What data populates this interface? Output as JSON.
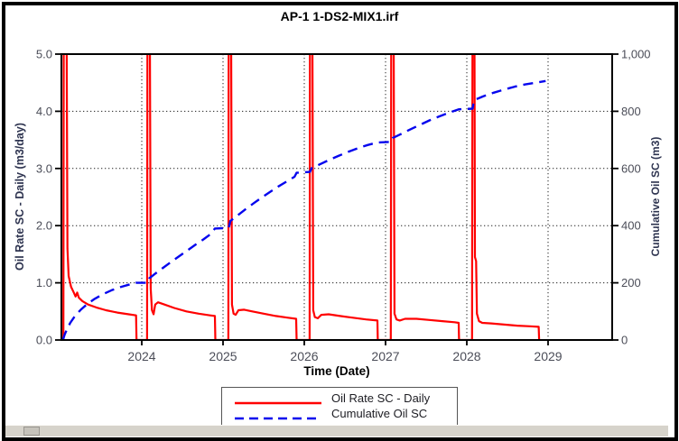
{
  "chart_data": {
    "type": "line",
    "title": "AP-1 1-DS2-MIX1.irf",
    "grid": "dotted",
    "legend_position": "bottom-center",
    "x_axis": {
      "label": "Time (Date)",
      "range": [
        2023.011,
        2029.789
      ],
      "ticks": [
        {
          "v": 2024,
          "label": "2024"
        },
        {
          "v": 2025,
          "label": "2025"
        },
        {
          "v": 2026,
          "label": "2026"
        },
        {
          "v": 2027,
          "label": "2027"
        },
        {
          "v": 2028,
          "label": "2028"
        },
        {
          "v": 2029,
          "label": "2029"
        }
      ]
    },
    "y_left": {
      "label": "Oil Rate SC - Daily (m3/day)",
      "range": [
        0,
        5
      ],
      "ticks": [
        {
          "v": 0,
          "label": "0.0"
        },
        {
          "v": 1,
          "label": "1.0"
        },
        {
          "v": 2,
          "label": "2.0"
        },
        {
          "v": 3,
          "label": "3.0"
        },
        {
          "v": 4,
          "label": "4.0"
        },
        {
          "v": 5,
          "label": "5.0"
        }
      ]
    },
    "y_right": {
      "label": "Cumulative Oil SC (m3)",
      "range": [
        0,
        1000
      ],
      "ticks": [
        {
          "v": 0,
          "label": "0"
        },
        {
          "v": 200,
          "label": "200"
        },
        {
          "v": 400,
          "label": "400"
        },
        {
          "v": 600,
          "label": "600"
        },
        {
          "v": 800,
          "label": "800"
        },
        {
          "v": 1000,
          "label": "1,000"
        }
      ]
    },
    "series": [
      {
        "name": "Oil Rate SC - Daily",
        "color": "#ff0000",
        "style": "solid",
        "axis": "left",
        "width": 2.2,
        "points": [
          [
            2023.035,
            0
          ],
          [
            2023.04,
            5.3
          ],
          [
            2023.075,
            5.3
          ],
          [
            2023.085,
            1.6
          ],
          [
            2023.1,
            1.12
          ],
          [
            2023.13,
            0.93
          ],
          [
            2023.16,
            0.84
          ],
          [
            2023.185,
            0.76
          ],
          [
            2023.205,
            0.83
          ],
          [
            2023.225,
            0.74
          ],
          [
            2023.27,
            0.68
          ],
          [
            2023.34,
            0.62
          ],
          [
            2023.44,
            0.57
          ],
          [
            2023.56,
            0.52
          ],
          [
            2023.7,
            0.48
          ],
          [
            2023.84,
            0.45
          ],
          [
            2023.93,
            0.43
          ],
          [
            2023.935,
            0
          ],
          [
            2024.065,
            0
          ],
          [
            2024.07,
            5.3
          ],
          [
            2024.1,
            5.3
          ],
          [
            2024.11,
            0.9
          ],
          [
            2024.125,
            0.52
          ],
          [
            2024.145,
            0.45
          ],
          [
            2024.165,
            0.62
          ],
          [
            2024.2,
            0.66
          ],
          [
            2024.28,
            0.62
          ],
          [
            2024.4,
            0.56
          ],
          [
            2024.55,
            0.5
          ],
          [
            2024.7,
            0.46
          ],
          [
            2024.84,
            0.43
          ],
          [
            2024.9,
            0.42
          ],
          [
            2024.905,
            0
          ],
          [
            2025.065,
            0
          ],
          [
            2025.07,
            5.3
          ],
          [
            2025.1,
            5.3
          ],
          [
            2025.11,
            0.62
          ],
          [
            2025.13,
            0.46
          ],
          [
            2025.155,
            0.44
          ],
          [
            2025.19,
            0.52
          ],
          [
            2025.26,
            0.53
          ],
          [
            2025.36,
            0.5
          ],
          [
            2025.5,
            0.46
          ],
          [
            2025.65,
            0.42
          ],
          [
            2025.8,
            0.39
          ],
          [
            2025.9,
            0.37
          ],
          [
            2025.905,
            0
          ],
          [
            2026.065,
            0
          ],
          [
            2026.07,
            5.3
          ],
          [
            2026.1,
            5.3
          ],
          [
            2026.11,
            0.52
          ],
          [
            2026.13,
            0.4
          ],
          [
            2026.165,
            0.38
          ],
          [
            2026.21,
            0.44
          ],
          [
            2026.3,
            0.45
          ],
          [
            2026.44,
            0.42
          ],
          [
            2026.6,
            0.39
          ],
          [
            2026.76,
            0.36
          ],
          [
            2026.9,
            0.34
          ],
          [
            2026.905,
            0
          ],
          [
            2027.065,
            0
          ],
          [
            2027.07,
            5.3
          ],
          [
            2027.1,
            5.3
          ],
          [
            2027.11,
            0.46
          ],
          [
            2027.135,
            0.36
          ],
          [
            2027.175,
            0.34
          ],
          [
            2027.24,
            0.37
          ],
          [
            2027.38,
            0.37
          ],
          [
            2027.54,
            0.35
          ],
          [
            2027.7,
            0.33
          ],
          [
            2027.85,
            0.31
          ],
          [
            2027.9,
            0.3
          ],
          [
            2027.905,
            0
          ],
          [
            2028.065,
            0
          ],
          [
            2028.07,
            5.3
          ],
          [
            2028.095,
            5.3
          ],
          [
            2028.1,
            1.45
          ],
          [
            2028.115,
            1.38
          ],
          [
            2028.125,
            0.46
          ],
          [
            2028.15,
            0.33
          ],
          [
            2028.19,
            0.3
          ],
          [
            2028.3,
            0.29
          ],
          [
            2028.46,
            0.27
          ],
          [
            2028.62,
            0.25
          ],
          [
            2028.78,
            0.24
          ],
          [
            2028.885,
            0.23
          ],
          [
            2028.89,
            0
          ]
        ]
      },
      {
        "name": "Cumulative Oil SC",
        "color": "#0606ee",
        "style": "dashed",
        "axis": "right",
        "width": 2.4,
        "points": [
          [
            2023.03,
            0
          ],
          [
            2023.05,
            18
          ],
          [
            2023.08,
            38
          ],
          [
            2023.12,
            60
          ],
          [
            2023.18,
            85
          ],
          [
            2023.25,
            106
          ],
          [
            2023.33,
            126
          ],
          [
            2023.42,
            144
          ],
          [
            2023.52,
            160
          ],
          [
            2023.63,
            174
          ],
          [
            2023.75,
            186
          ],
          [
            2023.86,
            195
          ],
          [
            2023.93,
            200
          ],
          [
            2024.07,
            200
          ],
          [
            2024.09,
            215
          ],
          [
            2024.16,
            231
          ],
          [
            2024.26,
            252
          ],
          [
            2024.36,
            273
          ],
          [
            2024.46,
            293
          ],
          [
            2024.56,
            313
          ],
          [
            2024.66,
            333
          ],
          [
            2024.76,
            352
          ],
          [
            2024.85,
            371
          ],
          [
            2024.9,
            390
          ],
          [
            2025.07,
            392
          ],
          [
            2025.09,
            416
          ],
          [
            2025.18,
            436
          ],
          [
            2025.28,
            458
          ],
          [
            2025.38,
            479
          ],
          [
            2025.48,
            499
          ],
          [
            2025.58,
            518
          ],
          [
            2025.68,
            537
          ],
          [
            2025.78,
            554
          ],
          [
            2025.88,
            571
          ],
          [
            2025.905,
            585
          ],
          [
            2026.07,
            588
          ],
          [
            2026.09,
            601
          ],
          [
            2026.18,
            613
          ],
          [
            2026.3,
            629
          ],
          [
            2026.42,
            644
          ],
          [
            2026.54,
            658
          ],
          [
            2026.66,
            671
          ],
          [
            2026.78,
            682
          ],
          [
            2026.9,
            691
          ],
          [
            2027.07,
            693
          ],
          [
            2027.09,
            707
          ],
          [
            2027.18,
            719
          ],
          [
            2027.3,
            736
          ],
          [
            2027.42,
            752
          ],
          [
            2027.54,
            768
          ],
          [
            2027.66,
            782
          ],
          [
            2027.78,
            795
          ],
          [
            2027.9,
            807
          ],
          [
            2028.07,
            809
          ],
          [
            2028.09,
            839
          ],
          [
            2028.2,
            852
          ],
          [
            2028.33,
            865
          ],
          [
            2028.46,
            876
          ],
          [
            2028.59,
            886
          ],
          [
            2028.72,
            894
          ],
          [
            2028.85,
            900
          ],
          [
            2028.97,
            906
          ]
        ]
      }
    ]
  }
}
